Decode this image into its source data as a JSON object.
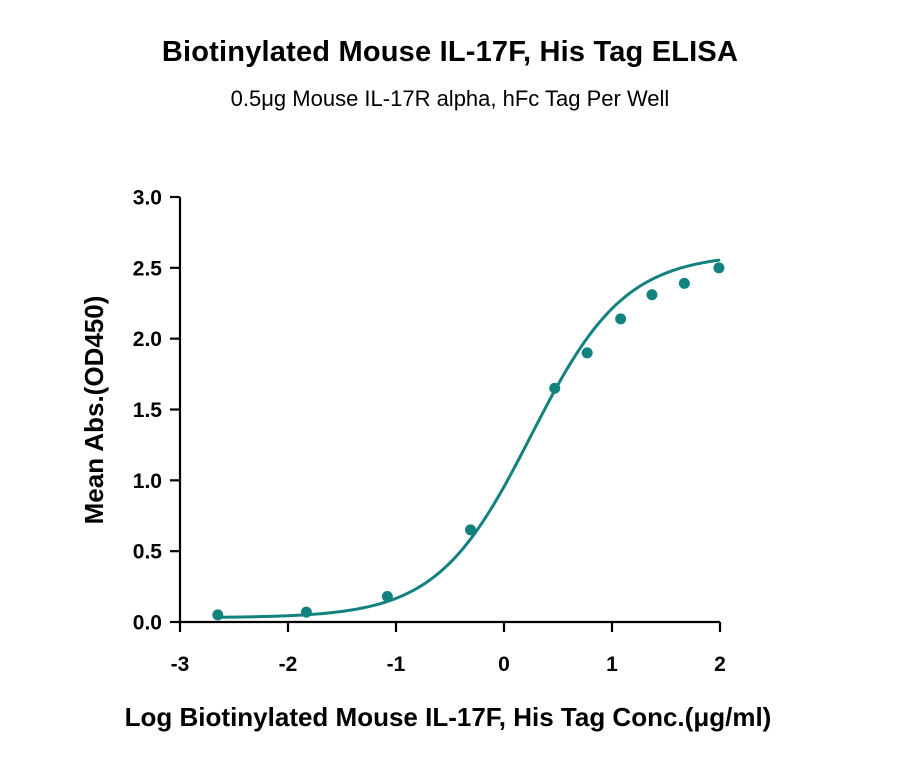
{
  "chart_data": {
    "type": "scatter",
    "title": "Biotinylated Mouse IL-17F, His Tag ELISA",
    "subtitle": "0.5μg Mouse IL-17R alpha, hFc Tag Per Well",
    "xlabel": "Log Biotinylated Mouse IL-17F, His Tag Conc.(μg/ml)",
    "ylabel": "Mean Abs.(OD450)",
    "xlim": [
      -3,
      2
    ],
    "ylim": [
      0,
      3
    ],
    "x_ticks": [
      "-3",
      "-2",
      "-1",
      "0",
      "1",
      "2"
    ],
    "y_ticks": [
      "0.0",
      "0.5",
      "1.0",
      "1.5",
      "2.0",
      "2.5",
      "3.0"
    ],
    "grid": false,
    "series": [
      {
        "color": "#12827F",
        "points": [
          {
            "x": -2.65,
            "y": 0.05
          },
          {
            "x": -1.83,
            "y": 0.07
          },
          {
            "x": -1.08,
            "y": 0.18
          },
          {
            "x": -0.31,
            "y": 0.65
          },
          {
            "x": 0.47,
            "y": 1.65
          },
          {
            "x": 0.77,
            "y": 1.9
          },
          {
            "x": 1.08,
            "y": 2.14
          },
          {
            "x": 1.37,
            "y": 2.31
          },
          {
            "x": 1.67,
            "y": 2.39
          },
          {
            "x": 1.99,
            "y": 2.5
          }
        ],
        "fit_curve": {
          "model": "4PL",
          "bottom": 0.03,
          "top": 2.6,
          "log_ec50": 0.25,
          "hill_slope": 1.0
        }
      }
    ]
  }
}
